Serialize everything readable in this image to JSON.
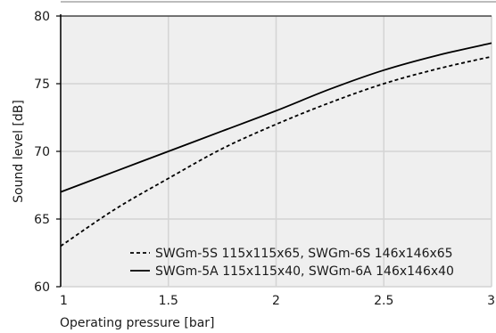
{
  "chart_data": {
    "type": "line",
    "title": "",
    "xlabel": "Operating pressure [bar]",
    "ylabel": "Sound level [dB]",
    "xlim": [
      1,
      3
    ],
    "ylim": [
      60,
      80
    ],
    "xticks": [
      1,
      1.5,
      2,
      2.5,
      3
    ],
    "xtick_labels": [
      "1",
      "1.5",
      "2",
      "2.5",
      "3"
    ],
    "yticks": [
      60,
      65,
      70,
      75,
      80
    ],
    "ytick_labels": [
      "60",
      "65",
      "70",
      "75",
      "80"
    ],
    "grid": true,
    "legend_position": "bottom-right",
    "colors": {
      "plot_background": "#efefef",
      "grid": "#d4d4d4",
      "line": "#000000"
    },
    "series": [
      {
        "name": "SWGm-5S 115x115x65, SWGm-6S 146x146x65",
        "style": "dashed",
        "x": [
          1,
          1.25,
          1.5,
          1.75,
          2,
          2.25,
          2.5,
          2.75,
          3
        ],
        "y": [
          63,
          65.7,
          68,
          70.2,
          72,
          73.6,
          75,
          76.1,
          77
        ]
      },
      {
        "name": "SWGm-5A 115x115x40, SWGm-6A 146x146x40",
        "style": "solid",
        "x": [
          1,
          1.25,
          1.5,
          1.75,
          2,
          2.25,
          2.5,
          2.75,
          3
        ],
        "y": [
          67,
          68.5,
          70,
          71.5,
          73,
          74.6,
          76,
          77.1,
          78
        ]
      }
    ]
  }
}
